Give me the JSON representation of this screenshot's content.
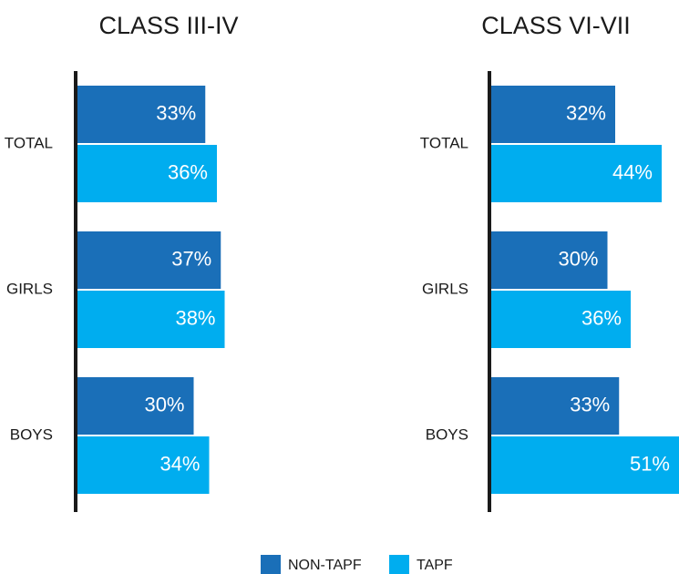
{
  "chart_data": [
    {
      "type": "bar",
      "title": "CLASS III-IV",
      "categories": [
        "TOTAL",
        "GIRLS",
        "BOYS"
      ],
      "series": [
        {
          "name": "NON-TAPF",
          "color": "#1a6fb8",
          "values": [
            33,
            37,
            30
          ],
          "value_labels": [
            "33%",
            "37%",
            "30%"
          ]
        },
        {
          "name": "TAPF",
          "color": "#00adef",
          "values": [
            36,
            38,
            34
          ],
          "value_labels": [
            "36%",
            "38%",
            "34%"
          ]
        }
      ]
    },
    {
      "type": "bar",
      "title": "CLASS VI-VII",
      "categories": [
        "TOTAL",
        "GIRLS",
        "BOYS"
      ],
      "series": [
        {
          "name": "NON-TAPF",
          "color": "#1a6fb8",
          "values": [
            32,
            30,
            33
          ],
          "value_labels": [
            "32%",
            "30%",
            "33%"
          ]
        },
        {
          "name": "TAPF",
          "color": "#00adef",
          "values": [
            44,
            36,
            51
          ],
          "value_labels": [
            "44%",
            "36%",
            "51%"
          ]
        }
      ]
    }
  ]
}
